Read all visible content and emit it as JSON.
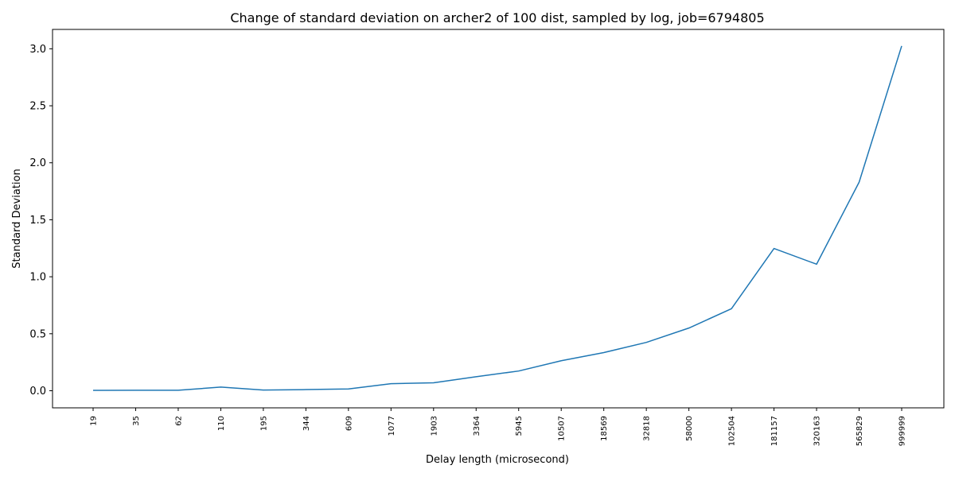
{
  "chart_data": {
    "type": "line",
    "title": "Change of standard deviation on archer2 of 100 dist, sampled by log, job=6794805",
    "xlabel": "Delay length (microsecond)",
    "ylabel": "Standard Deviation",
    "categories": [
      "19",
      "35",
      "62",
      "110",
      "195",
      "344",
      "609",
      "1077",
      "1903",
      "3364",
      "5945",
      "10507",
      "18569",
      "32818",
      "58000",
      "102504",
      "181157",
      "320163",
      "565829",
      "999999"
    ],
    "series": [
      {
        "values": [
          0.003,
          0.004,
          0.004,
          0.032,
          0.006,
          0.01,
          0.016,
          0.062,
          0.07,
          0.123,
          0.173,
          0.263,
          0.335,
          0.424,
          0.55,
          0.72,
          1.248,
          1.11,
          1.83,
          3.025
        ],
        "color": "#1f77b4"
      }
    ],
    "ylim": [
      -0.15,
      3.17
    ],
    "yticks": [
      "0.0",
      "0.5",
      "1.0",
      "1.5",
      "2.0",
      "2.5",
      "3.0"
    ],
    "grid": false,
    "legend": "none"
  }
}
